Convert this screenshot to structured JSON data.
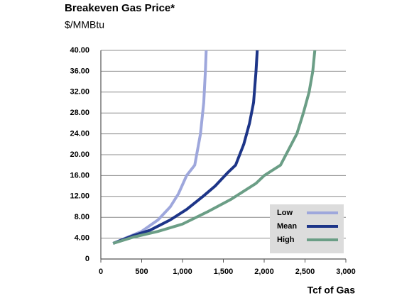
{
  "chart_data": {
    "type": "line",
    "title": "Breakeven Gas Price*",
    "subtitle": "$/MMBtu",
    "x_label": "Tcf of Gas",
    "xlim": [
      0,
      3000
    ],
    "xticks": [
      0,
      500,
      {
        "value": 1000,
        "label": "1,000"
      },
      {
        "value": 1500,
        "label": "1,500"
      },
      {
        "value": 2000,
        "label": "2,000"
      },
      {
        "value": 2500,
        "label": "2,500"
      },
      {
        "value": 3000,
        "label": "3,000"
      }
    ],
    "ylim": [
      0,
      40
    ],
    "yticks": [
      0,
      {
        "value": 4,
        "label": "4.00"
      },
      {
        "value": 8,
        "label": "8.00"
      },
      {
        "value": 12,
        "label": "12.00"
      },
      {
        "value": 16,
        "label": "16.00"
      },
      {
        "value": 20,
        "label": "20.00"
      },
      {
        "value": 24,
        "label": "24.00"
      },
      {
        "value": 28,
        "label": "28.00"
      },
      {
        "value": 32,
        "label": "32.00"
      },
      {
        "value": 36,
        "label": "36.00"
      },
      {
        "value": 40,
        "label": "40.00"
      }
    ],
    "grid": true,
    "legend": "lower right",
    "series": [
      {
        "name": "Low",
        "color": "#9ea7dc",
        "x": [
          150,
          300,
          500,
          700,
          850,
          950,
          1050,
          1150,
          1220,
          1260,
          1280,
          1290
        ],
        "values": [
          3,
          4,
          5.3,
          7.5,
          10,
          12.5,
          16,
          18,
          24,
          30,
          36,
          40
        ]
      },
      {
        "name": "Mean",
        "color": "#1d3588",
        "x": [
          150,
          400,
          600,
          850,
          1050,
          1250,
          1400,
          1550,
          1650,
          1750,
          1820,
          1870,
          1900,
          1915
        ],
        "values": [
          3,
          4.5,
          5.5,
          7.5,
          9.5,
          12,
          14,
          16.5,
          18,
          22,
          26,
          30,
          36,
          40
        ]
      },
      {
        "name": "High",
        "color": "#6b9e86",
        "x": [
          150,
          400,
          700,
          1000,
          1300,
          1600,
          1900,
          2000,
          2200,
          2300,
          2400,
          2480,
          2550,
          2595,
          2620
        ],
        "values": [
          3,
          4.2,
          5.3,
          6.7,
          9,
          11.5,
          14.5,
          16,
          18,
          21,
          24,
          28,
          32,
          36,
          40
        ]
      }
    ]
  }
}
